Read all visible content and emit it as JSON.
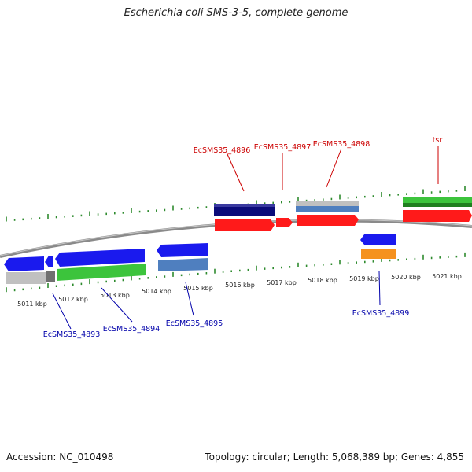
{
  "title": "Escherichia coli SMS-3-5, complete genome",
  "footer": {
    "accession": "Accession: NC_010498",
    "topology": "Topology: circular; Length: 5,068,389 bp; Genes: 4,855"
  },
  "colors": {
    "backbone": "#888888",
    "tick": "#2e8b2e",
    "forward_label": "#cc0000",
    "reverse_label": "#0000aa",
    "red_gene": "#ff1a1a",
    "blue_gene": "#1a1aee",
    "navy_gene": "#0b0b7a",
    "green_gene": "#3cc43c",
    "steel_gene": "#4f7fbf",
    "orange_gene": "#f5921e",
    "gray_gene": "#c0c0c0"
  },
  "scale_labels": [
    "5011 kbp",
    "5012 kbp",
    "5013 kbp",
    "5014 kbp",
    "5015 kbp",
    "5016 kbp",
    "5017 kbp",
    "5018 kbp",
    "5019 kbp",
    "5020 kbp",
    "5021 kbp"
  ],
  "top_labels": [
    "EcSMS35_4896",
    "EcSMS35_4897",
    "EcSMS35_4898",
    "tsr"
  ],
  "bottom_labels": [
    "EcSMS35_4893",
    "EcSMS35_4894",
    "EcSMS35_4895",
    "EcSMS35_4899"
  ]
}
